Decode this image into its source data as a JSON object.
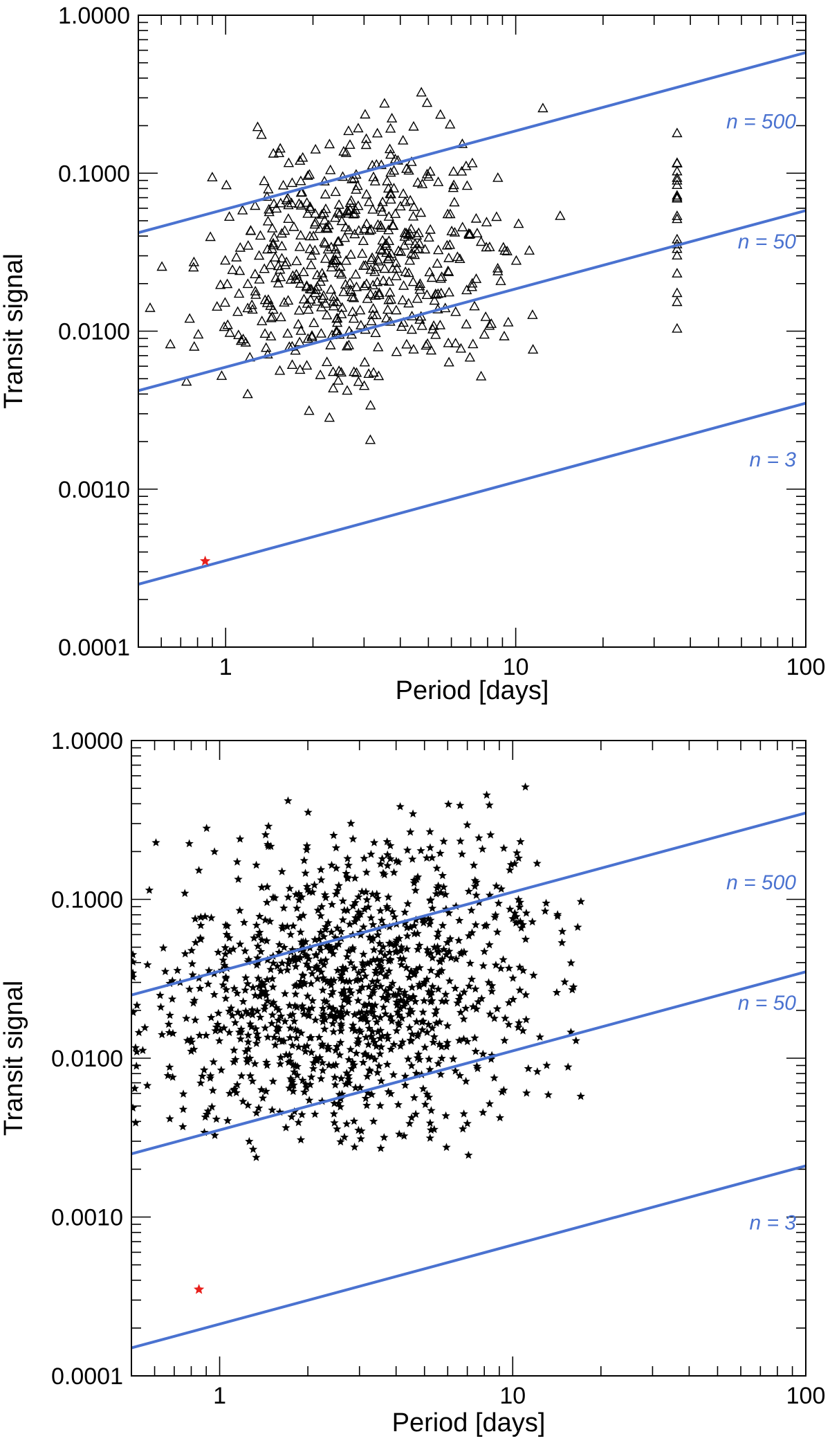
{
  "chart_data": [
    {
      "type": "scatter",
      "panel": "top",
      "marker": "triangle",
      "xlabel": "Period [days]",
      "ylabel": "Transit signal",
      "xscale": "log",
      "yscale": "log",
      "xlim": [
        0.5,
        100
      ],
      "ylim": [
        0.0001,
        1.0
      ],
      "xticks": [
        {
          "v": 1,
          "label": "1"
        },
        {
          "v": 10,
          "label": "10"
        },
        {
          "v": 100,
          "label": "100"
        }
      ],
      "yticks": [
        {
          "v": 0.0001,
          "label": "0.0001"
        },
        {
          "v": 0.001,
          "label": "0.0010"
        },
        {
          "v": 0.01,
          "label": "0.0100"
        },
        {
          "v": 0.1,
          "label": "0.1000"
        },
        {
          "v": 1.0,
          "label": "1.0000"
        }
      ],
      "lines": [
        {
          "label": "n = 500",
          "y_at_xmin": 0.042,
          "y_at_xmax": 0.58
        },
        {
          "label": "n = 50",
          "y_at_xmin": 0.0042,
          "y_at_xmax": 0.058
        },
        {
          "label": "n = 3",
          "y_at_xmin": 0.00025,
          "y_at_xmax": 0.0035
        }
      ],
      "highlight": {
        "x": 0.85,
        "y": 0.00035
      },
      "point_count": 560,
      "random_seed": 11
    },
    {
      "type": "scatter",
      "panel": "bottom",
      "marker": "star",
      "xlabel": "Period [days]",
      "ylabel": "Transit signal",
      "xscale": "log",
      "yscale": "log",
      "xlim": [
        0.5,
        100
      ],
      "ylim": [
        0.0001,
        1.0
      ],
      "xticks": [
        {
          "v": 1,
          "label": "1"
        },
        {
          "v": 10,
          "label": "10"
        },
        {
          "v": 100,
          "label": "100"
        }
      ],
      "yticks": [
        {
          "v": 0.0001,
          "label": "0.0001"
        },
        {
          "v": 0.001,
          "label": "0.0010"
        },
        {
          "v": 0.01,
          "label": "0.0100"
        },
        {
          "v": 0.1,
          "label": "0.1000"
        },
        {
          "v": 1.0,
          "label": "1.0000"
        }
      ],
      "lines": [
        {
          "label": "n = 500",
          "y_at_xmin": 0.025,
          "y_at_xmax": 0.35
        },
        {
          "label": "n = 50",
          "y_at_xmin": 0.0025,
          "y_at_xmax": 0.035
        },
        {
          "label": "n = 3",
          "y_at_xmin": 0.00015,
          "y_at_xmax": 0.0021
        }
      ],
      "highlight": {
        "x": 0.85,
        "y": 0.00035
      },
      "point_count": 1100,
      "random_seed": 23
    }
  ],
  "colors": {
    "line": "#4a72d0",
    "marker": "#000000",
    "highlight": "#e8201c",
    "frame": "#000000"
  }
}
